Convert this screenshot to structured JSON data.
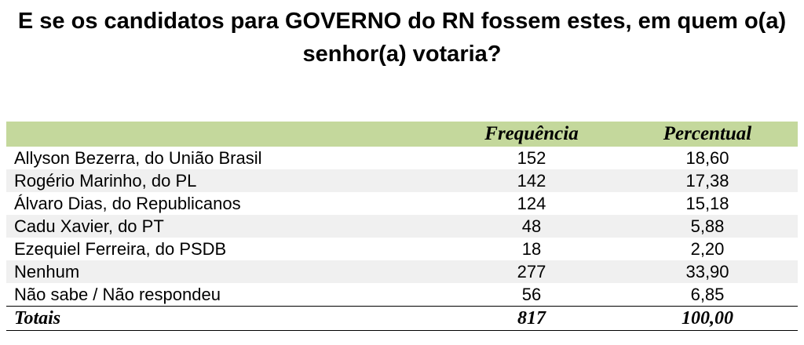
{
  "header": {
    "title": "E se os candidatos para GOVERNO do RN fossem estes, em quem o(a) senhor(a) votaria?"
  },
  "table": {
    "columns": [
      "Frequência",
      "Percentual"
    ],
    "rows": [
      [
        "Allyson Bezerra, do União Brasil",
        "152",
        "18,60"
      ],
      [
        "Rogério Marinho, do PL",
        "142",
        "17,38"
      ],
      [
        "Álvaro Dias, do Republicanos",
        "124",
        "15,18"
      ],
      [
        "Cadu Xavier, do PT",
        "48",
        "5,88"
      ],
      [
        "Ezequiel Ferreira, do PSDB",
        "18",
        "2,20"
      ],
      [
        "Nenhum",
        "277",
        "33,90"
      ],
      [
        "Não sabe / Não respondeu",
        "56",
        "6,85"
      ]
    ],
    "totals": [
      "Totais",
      "817",
      "100,00"
    ]
  }
}
